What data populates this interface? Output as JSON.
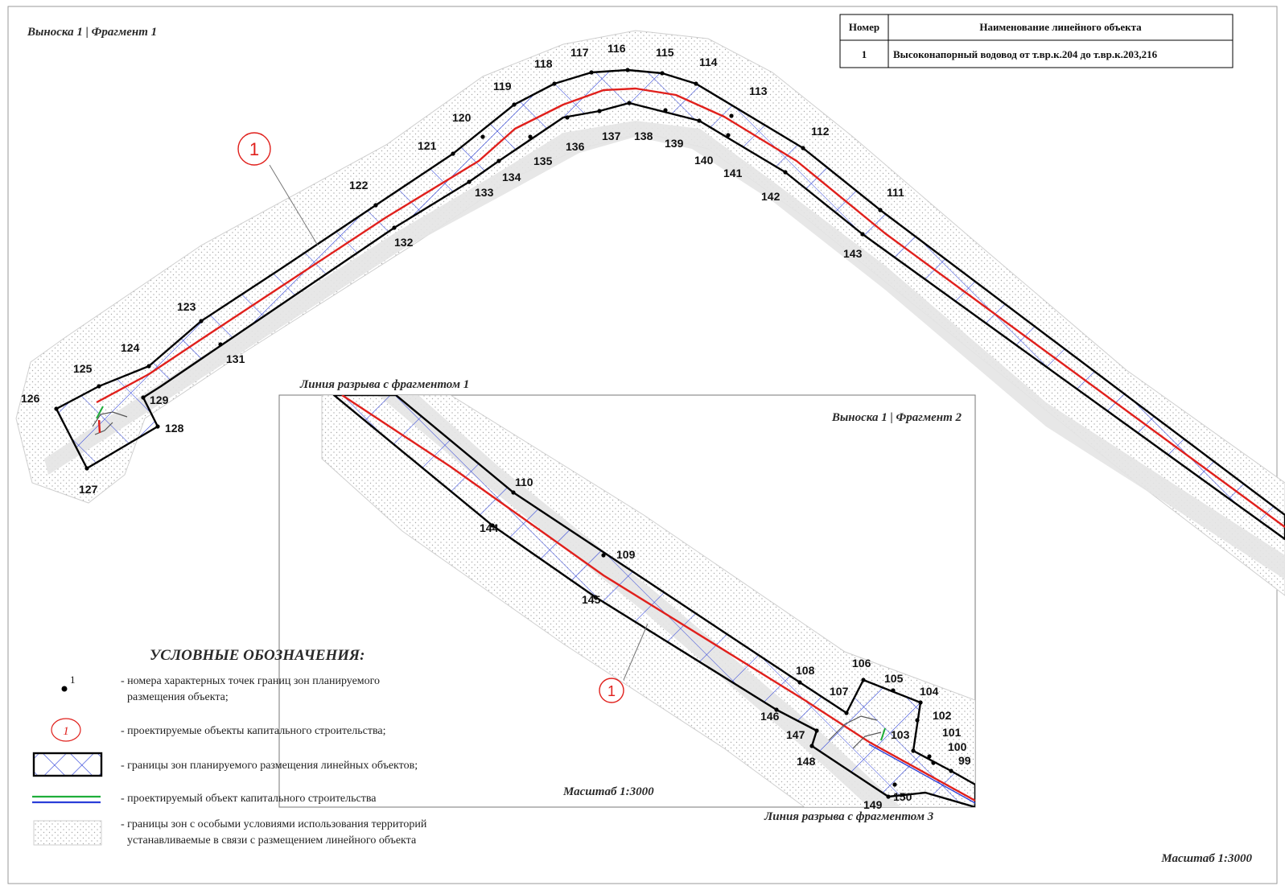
{
  "fragment1": {
    "title": "Выноска 1 | Фрагмент 1",
    "scale": "Масштаб 1:3000"
  },
  "fragment2": {
    "title": "Выноска 1 | Фрагмент 2",
    "scale": "Масштаб 1:3000",
    "break_top": "Линия разрыва с фрагментом 1",
    "break_bottom": "Линия разрыва с фрагментом 3"
  },
  "object_marker": "1",
  "table": {
    "headers": [
      "Номер",
      "Наименование линейного объекта"
    ],
    "rows": [
      [
        "1",
        "Высоконапорный водовод от т.вр.к.204 до т.вр.к.203,216"
      ]
    ]
  },
  "legend": {
    "title": "УСЛОВНЫЕ ОБОЗНАЧЕНИЯ:",
    "point_sample": "1",
    "object_sample": "1",
    "items": [
      "- номера характерных точек границ зон планируемого",
      "размещения объекта;",
      "- проектируемые объекты капитального строительства;",
      "- границы зон планируемого размещения линейных объектов;",
      "- проектируемый объект капитального строительства",
      "- границы зон с особыми условиями использования территорий",
      "устанавливаемые в связи с размещением линейного объекта"
    ]
  },
  "points_fragment1": [
    "111",
    "112",
    "113",
    "114",
    "115",
    "116",
    "117",
    "118",
    "119",
    "120",
    "121",
    "122",
    "123",
    "124",
    "125",
    "126",
    "127",
    "128",
    "129",
    "131",
    "132",
    "133",
    "134",
    "135",
    "136",
    "137",
    "138",
    "139",
    "140",
    "141",
    "142",
    "143"
  ],
  "points_fragment2": [
    "99",
    "100",
    "101",
    "102",
    "103",
    "104",
    "105",
    "106",
    "107",
    "108",
    "109",
    "110",
    "144",
    "145",
    "146",
    "147",
    "148",
    "149",
    "150"
  ],
  "colors": {
    "pipeline": "#e0201c",
    "boundary": "#000000",
    "hatch": "#2a3ed8",
    "zone_dots": "#b5b5b5",
    "marker": "#e0201c"
  }
}
